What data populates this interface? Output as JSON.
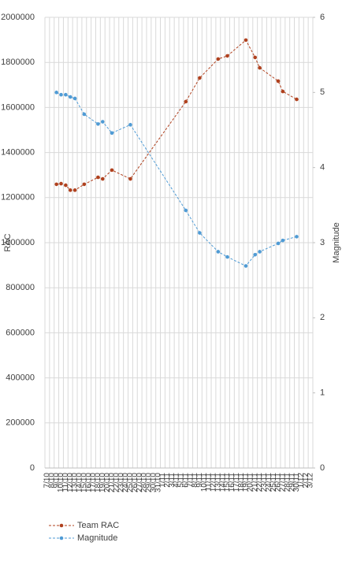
{
  "chart_data": {
    "type": "line",
    "y_label": "RAC",
    "y2_label": "Magnitude",
    "categories": [
      "7/10",
      "8/10",
      "9/10",
      "10/10",
      "11/10",
      "12/10",
      "13/10",
      "14/10",
      "15/10",
      "16/10",
      "17/10",
      "18/10",
      "19/10",
      "20/10",
      "21/10",
      "22/10",
      "23/10",
      "24/10",
      "25/10",
      "26/10",
      "27/10",
      "28/10",
      "29/10",
      "30/10",
      "31/10",
      "1/11",
      "2/11",
      "3/11",
      "4/11",
      "5/11",
      "6/11",
      "7/11",
      "8/11",
      "9/11",
      "10/11",
      "11/11",
      "12/11",
      "13/11",
      "14/11",
      "15/11",
      "16/11",
      "17/11",
      "18/11",
      "19/11",
      "20/11",
      "21/11",
      "22/11",
      "23/11",
      "24/11",
      "25/11",
      "26/11",
      "27/11",
      "28/11",
      "29/11",
      "30/11",
      "1/12",
      "2/12",
      "3/12"
    ],
    "x": [
      "9/10",
      "10/10",
      "11/10",
      "12/10",
      "13/10",
      "15/10",
      "18/10",
      "19/10",
      "21/10",
      "25/10",
      "6/11",
      "9/11",
      "13/11",
      "15/11",
      "19/11",
      "21/11",
      "22/11",
      "26/11",
      "27/11",
      "30/11"
    ],
    "series": [
      {
        "name": "Team RAC",
        "color": "#b0411e",
        "values": [
          1259000,
          1262000,
          1255000,
          1233000,
          1233000,
          1259000,
          1290000,
          1283000,
          1322000,
          1283000,
          1626000,
          1731000,
          1815000,
          1829000,
          1899000,
          1822000,
          1776000,
          1717000,
          1671000,
          1636000
        ]
      },
      {
        "name": "Magnitude",
        "color": "#4f9bd5",
        "axis": "y2",
        "values": [
          5.0,
          4.97,
          4.97,
          4.94,
          4.92,
          4.71,
          4.58,
          4.61,
          4.46,
          4.57,
          3.43,
          3.13,
          2.88,
          2.81,
          2.69,
          2.84,
          2.88,
          2.99,
          3.03,
          3.08
        ]
      }
    ],
    "ylim": [
      0,
      2000000
    ],
    "yticks": [
      0,
      200000,
      400000,
      600000,
      800000,
      1000000,
      1200000,
      1400000,
      1600000,
      1800000,
      2000000
    ],
    "y2lim": [
      0,
      6
    ],
    "y2ticks": [
      0,
      1,
      2,
      3,
      4,
      5,
      6
    ],
    "grid": true
  }
}
